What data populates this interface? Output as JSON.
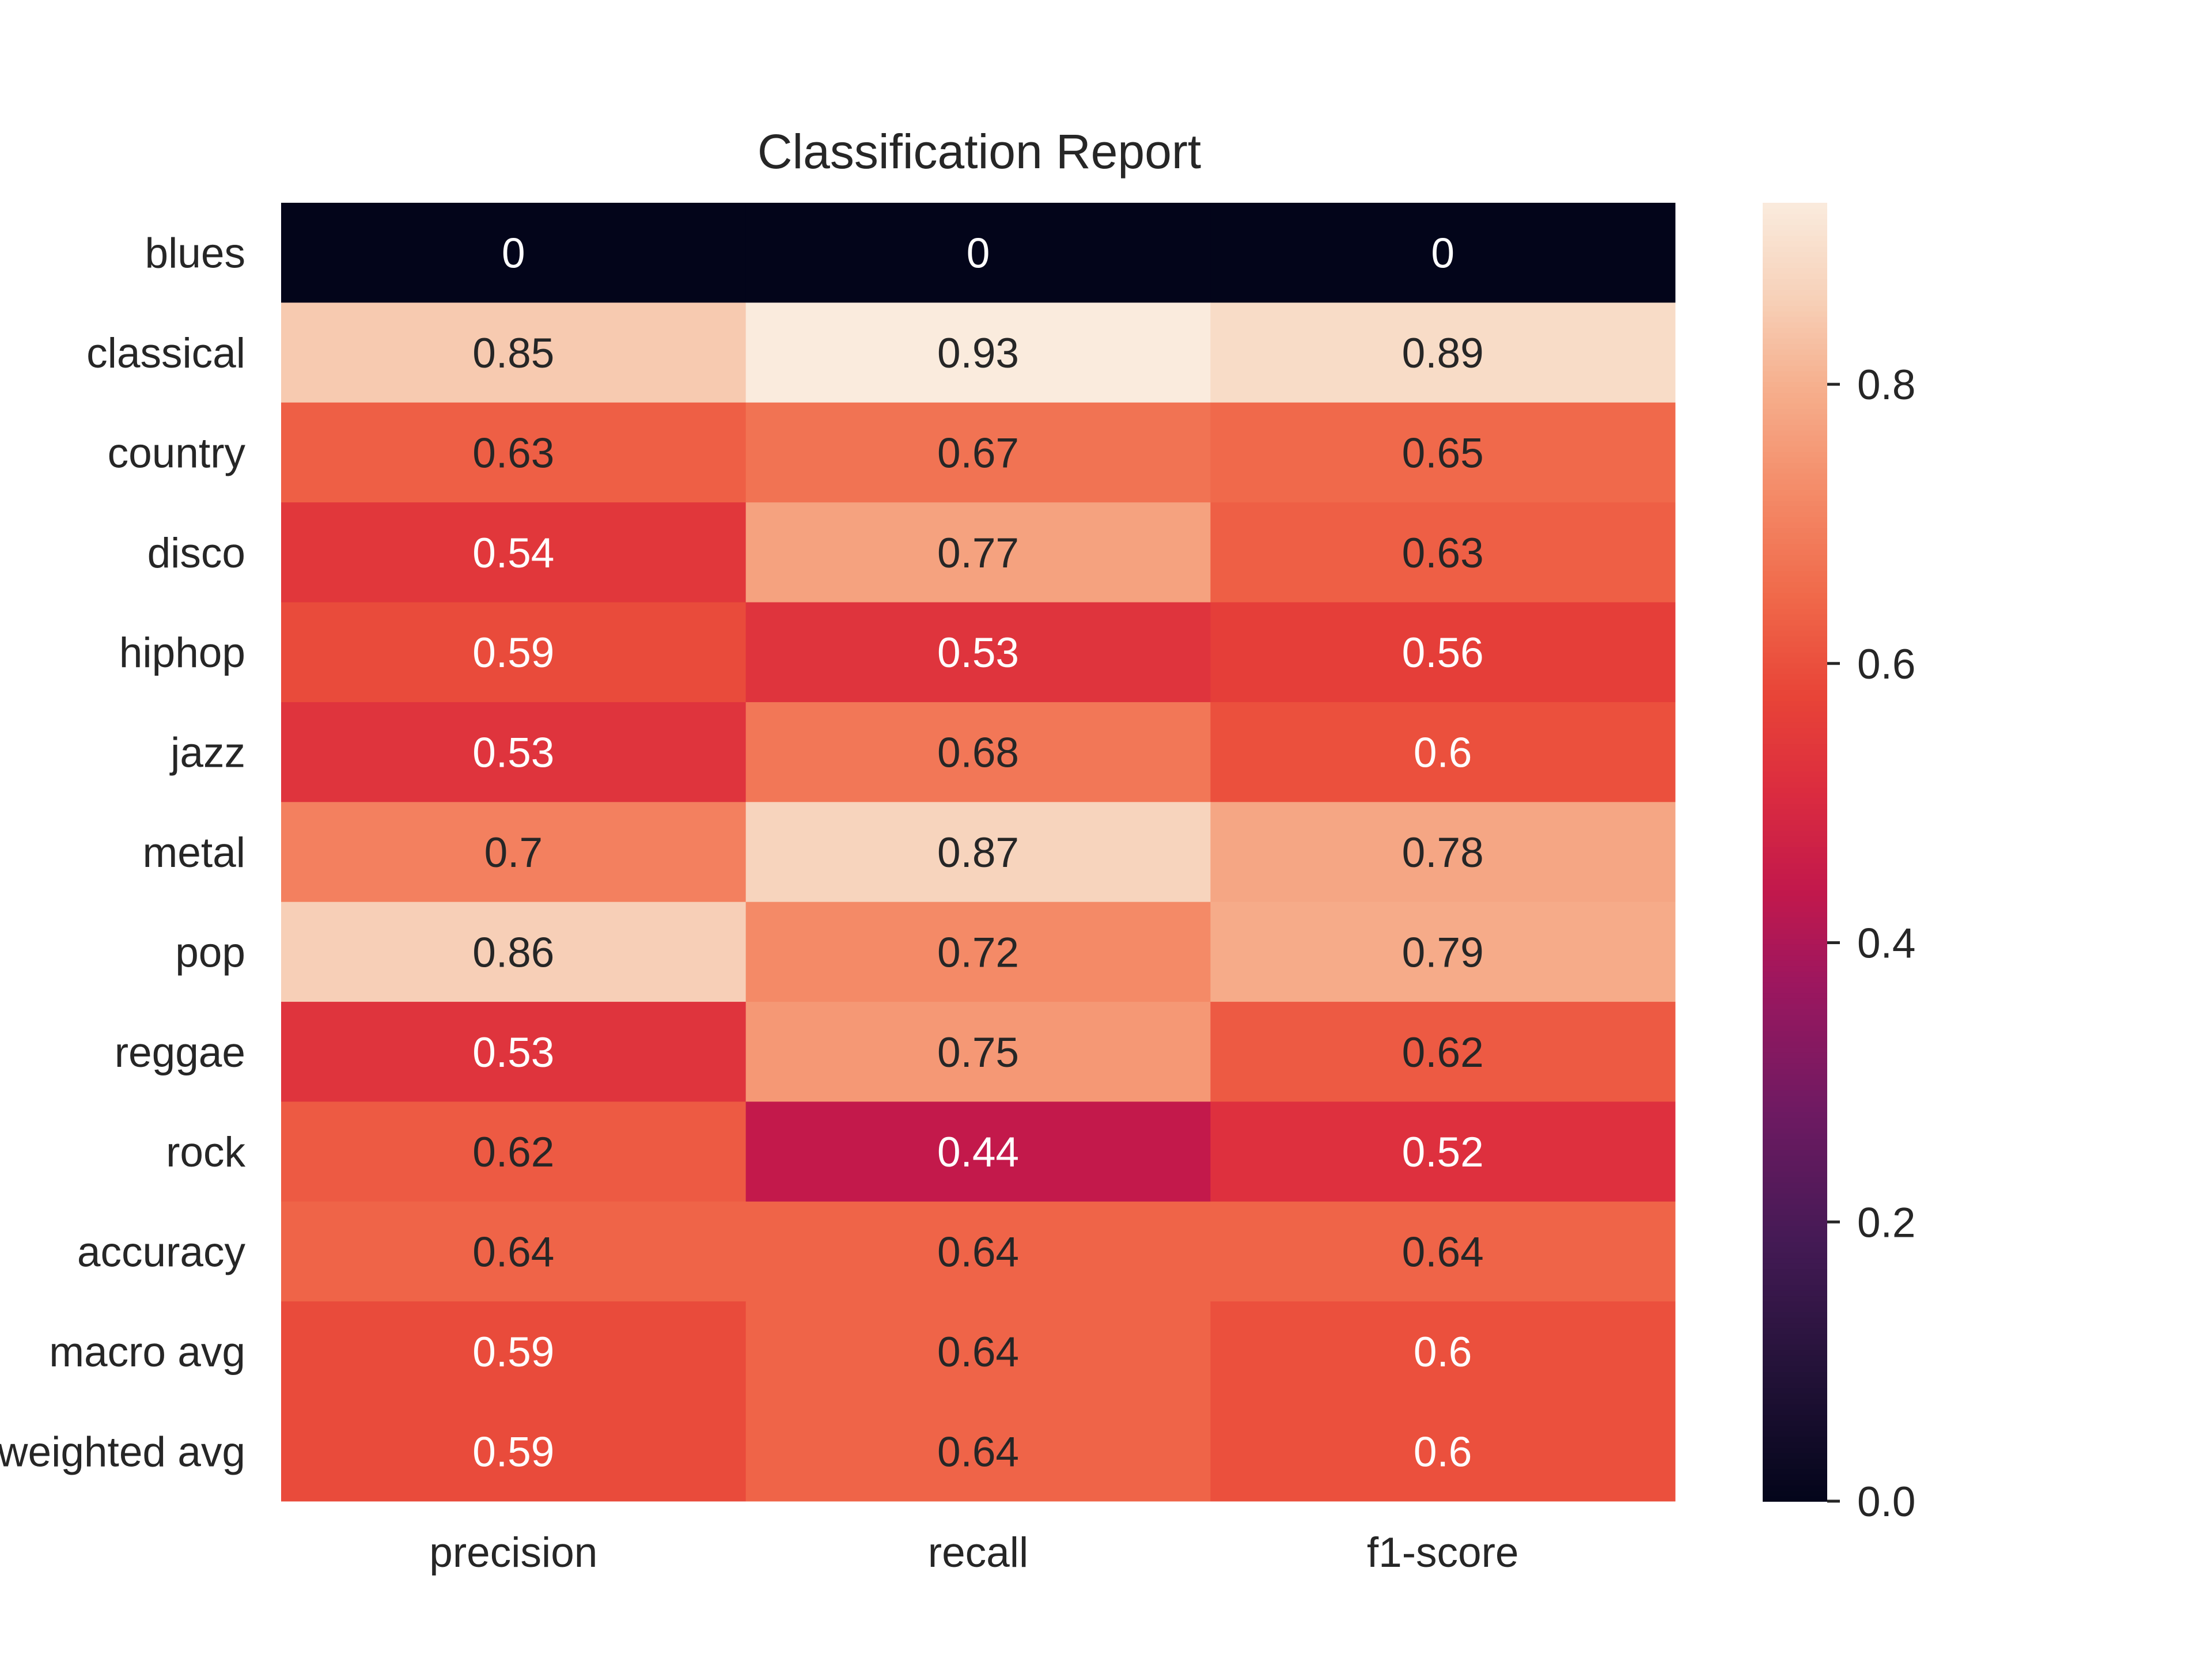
{
  "chart_data": {
    "type": "heatmap",
    "title": "Classification Report",
    "rows": [
      "blues",
      "classical",
      "country",
      "disco",
      "hiphop",
      "jazz",
      "metal",
      "pop",
      "reggae",
      "rock",
      "accuracy",
      "macro avg",
      "weighted avg"
    ],
    "columns": [
      "precision",
      "recall",
      "f1-score"
    ],
    "values": [
      [
        0,
        0,
        0
      ],
      [
        0.85,
        0.93,
        0.89
      ],
      [
        0.63,
        0.67,
        0.65
      ],
      [
        0.54,
        0.77,
        0.63
      ],
      [
        0.59,
        0.53,
        0.56
      ],
      [
        0.53,
        0.68,
        0.6
      ],
      [
        0.7,
        0.87,
        0.78
      ],
      [
        0.86,
        0.72,
        0.79
      ],
      [
        0.53,
        0.75,
        0.62
      ],
      [
        0.62,
        0.44,
        0.52
      ],
      [
        0.64,
        0.64,
        0.64
      ],
      [
        0.59,
        0.64,
        0.6
      ],
      [
        0.59,
        0.64,
        0.6
      ]
    ],
    "colorbar": {
      "min": 0,
      "max": 0.93,
      "ticks": [
        "0.0",
        "0.2",
        "0.4",
        "0.6",
        "0.8"
      ],
      "colormap": "rocket"
    }
  }
}
